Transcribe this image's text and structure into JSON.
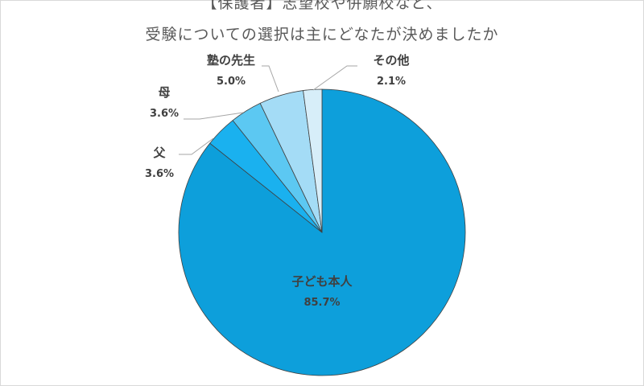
{
  "title_line1": "【保護者】志望校や併願校など、",
  "title_line2": "受験についての選択は主にどなたが決めましたか",
  "chart_data": {
    "type": "pie",
    "title": "【保護者】志望校や併願校など、受験についての選択は主にどなたが決めましたか",
    "slices": [
      {
        "label": "子ども本人",
        "value": 85.7,
        "display": "85.7%",
        "color": "#0d9fdb"
      },
      {
        "label": "父",
        "value": 3.6,
        "display": "3.6%",
        "color": "#1ab1ef"
      },
      {
        "label": "母",
        "value": 3.6,
        "display": "3.6%",
        "color": "#5cc8f2"
      },
      {
        "label": "塾の先生",
        "value": 5.0,
        "display": "5.0%",
        "color": "#a4dcf6"
      },
      {
        "label": "その他",
        "value": 2.1,
        "display": "2.1%",
        "color": "#d7eef9"
      }
    ]
  }
}
